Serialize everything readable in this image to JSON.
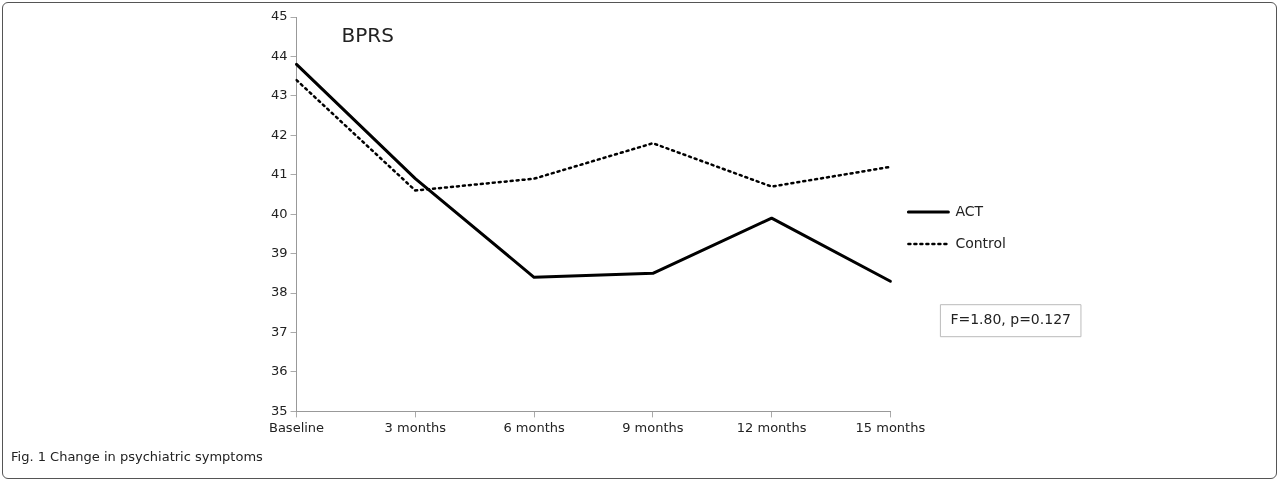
{
  "chart_data": {
    "type": "line",
    "title": "BPRS",
    "categories": [
      "Baseline",
      "3 months",
      "6 months",
      "9 months",
      "12 months",
      "15 months"
    ],
    "series": [
      {
        "name": "ACT",
        "color": "#000000",
        "line_style": "solid",
        "values": [
          43.8,
          40.9,
          38.4,
          38.5,
          39.9,
          38.3
        ]
      },
      {
        "name": "Control",
        "color": "#000000",
        "line_style": "dotted",
        "values": [
          43.4,
          40.6,
          40.9,
          41.8,
          40.7,
          41.2
        ]
      }
    ],
    "ylim": [
      35,
      45
    ],
    "yticks": [
      35,
      36,
      37,
      38,
      39,
      40,
      41,
      42,
      43,
      44,
      45
    ],
    "grid": false,
    "legend": "right",
    "marker": "none",
    "annotations": [
      "F=1.80, p=0.127",
      "Fig. 1 Change in psychiatric symptoms"
    ]
  }
}
